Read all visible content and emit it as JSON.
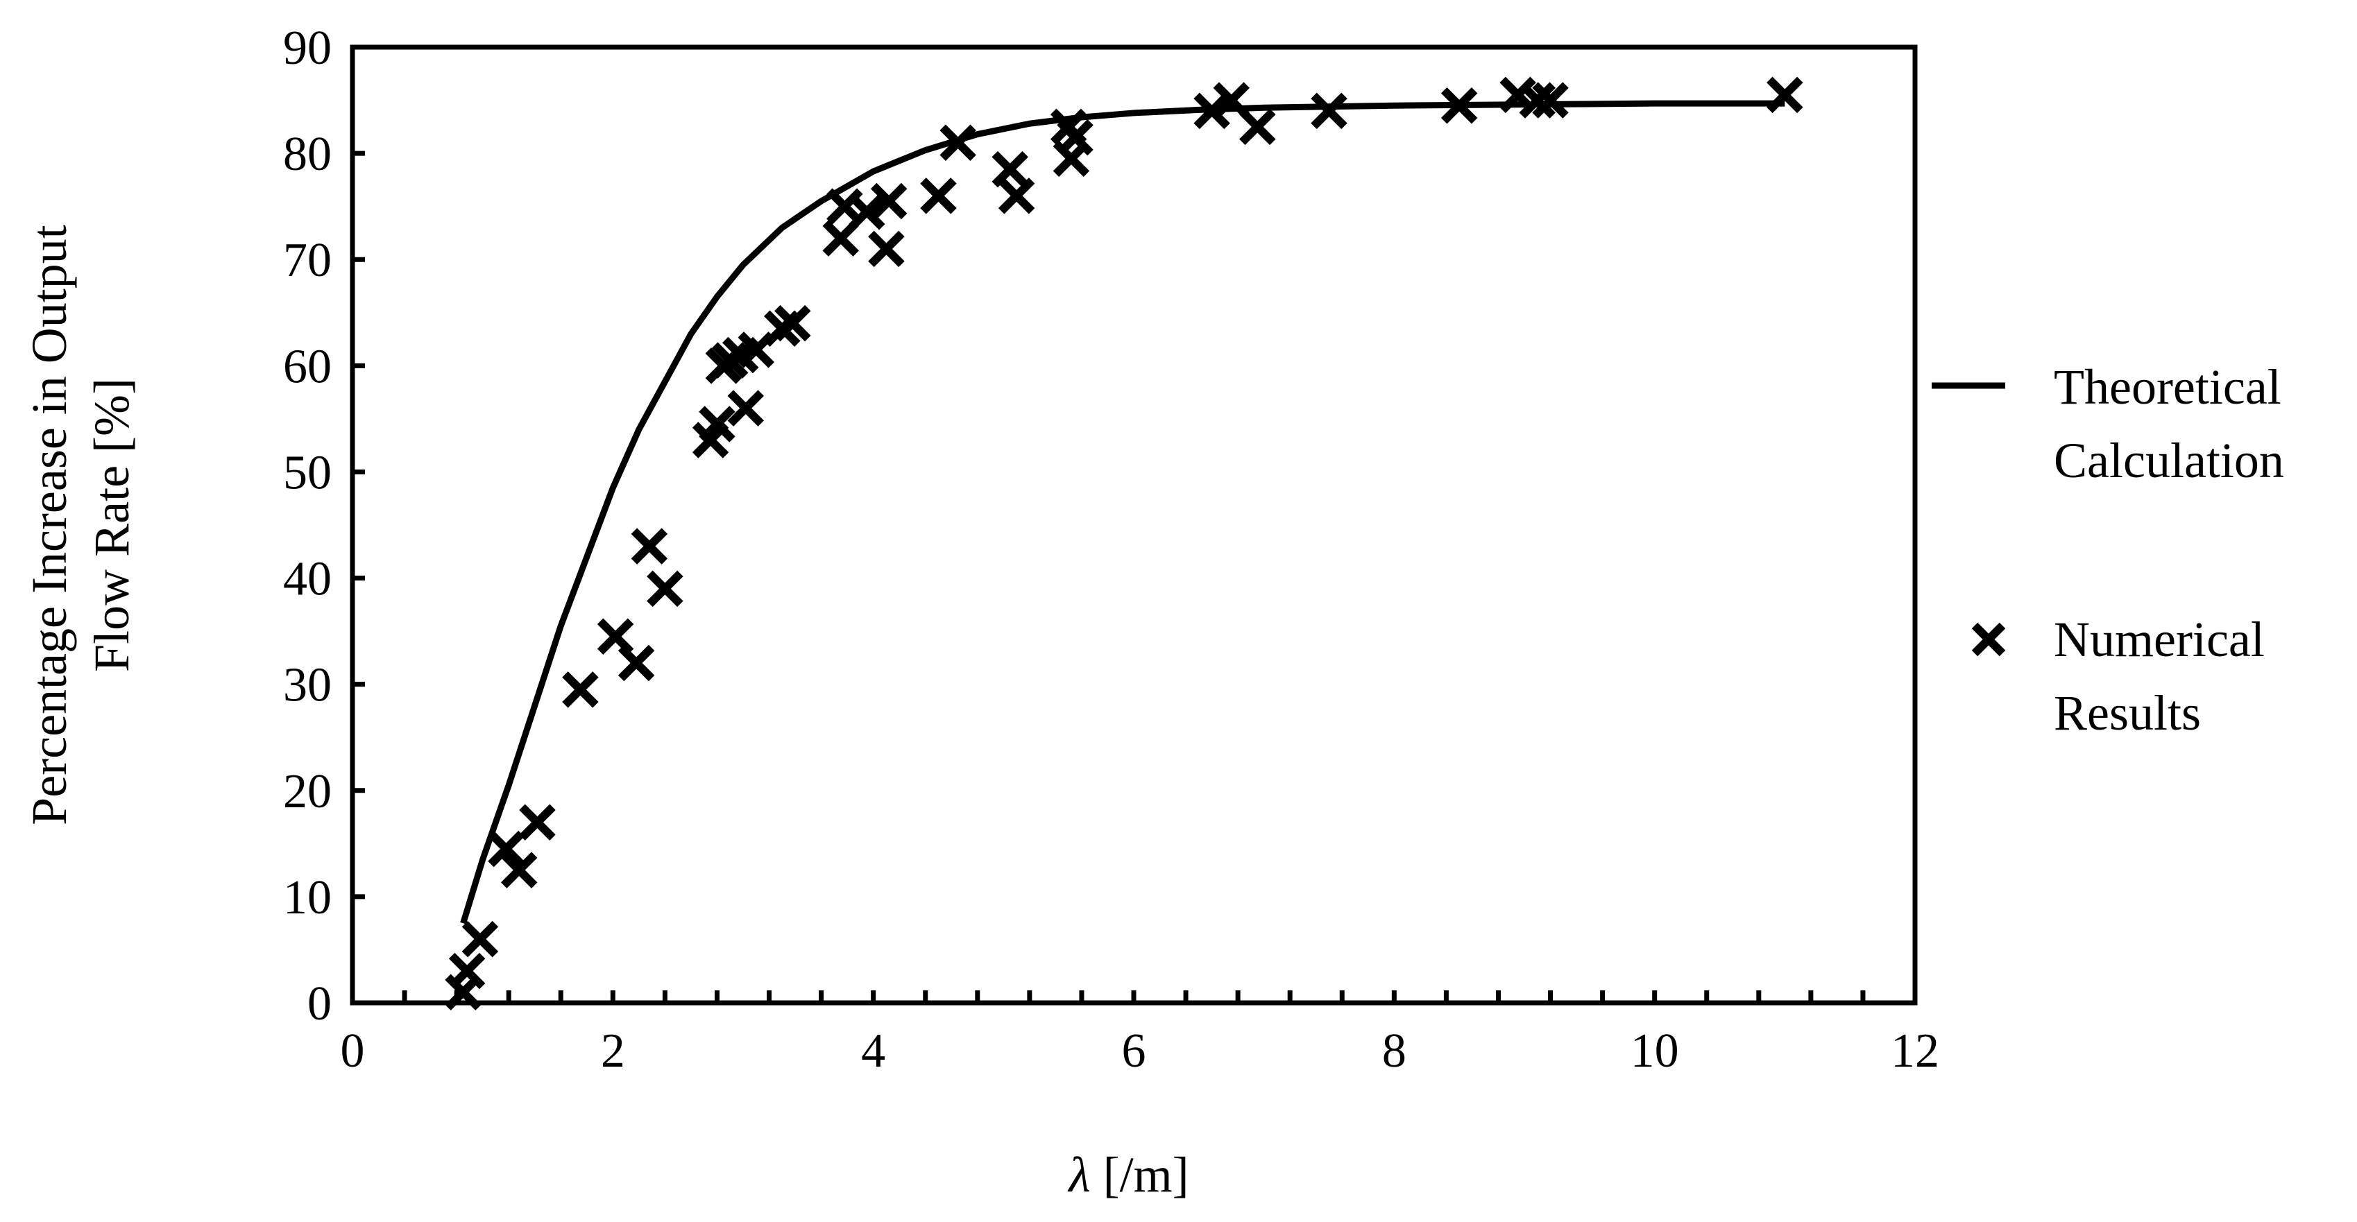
{
  "chart_data": {
    "type": "scatter",
    "title": "",
    "xlabel": {
      "symbol": "λ",
      "unit": " [/m]"
    },
    "ylabel": {
      "line1": "Percentage Increase in Output",
      "line2": "Flow Rate [%]"
    },
    "xlim": [
      0,
      12
    ],
    "ylim": [
      0,
      90
    ],
    "xticks": [
      0,
      2,
      4,
      6,
      8,
      10,
      12
    ],
    "yticks": [
      0,
      10,
      20,
      30,
      40,
      50,
      60,
      70,
      80,
      90
    ],
    "x_minor_step": 0.4,
    "grid": false,
    "legend_position": "right",
    "series": [
      {
        "name": "Theoretical Calculation",
        "legend_lines": [
          "Theoretical",
          "Calculation"
        ],
        "kind": "line",
        "color": "#000000",
        "x": [
          0.85,
          1.0,
          1.2,
          1.4,
          1.6,
          1.8,
          2.0,
          2.2,
          2.4,
          2.6,
          2.8,
          3.0,
          3.3,
          3.6,
          4.0,
          4.4,
          4.8,
          5.2,
          5.6,
          6.0,
          6.5,
          7.0,
          8.0,
          9.0,
          10.0,
          11.0
        ],
        "y": [
          7.5,
          13.5,
          20.5,
          28.0,
          35.5,
          42.0,
          48.5,
          54.0,
          58.5,
          63.0,
          66.5,
          69.5,
          73.0,
          75.5,
          78.3,
          80.3,
          81.8,
          82.8,
          83.4,
          83.8,
          84.1,
          84.3,
          84.5,
          84.6,
          84.7,
          84.7
        ]
      },
      {
        "name": "Numerical Results",
        "legend_lines": [
          "Numerical",
          "Results"
        ],
        "kind": "scatter",
        "marker": "x",
        "color": "#000000",
        "x": [
          0.85,
          0.88,
          0.98,
          1.18,
          1.28,
          1.42,
          1.75,
          2.02,
          2.18,
          2.28,
          2.4,
          2.75,
          2.8,
          2.85,
          2.9,
          2.98,
          3.02,
          3.1,
          3.3,
          3.38,
          3.75,
          3.78,
          3.95,
          4.1,
          4.12,
          4.5,
          4.65,
          5.05,
          5.1,
          5.5,
          5.52,
          5.55,
          6.6,
          6.75,
          6.95,
          7.5,
          8.5,
          8.95,
          9.1,
          9.2,
          11.0
        ],
        "y": [
          1.0,
          3.0,
          6.0,
          14.5,
          12.5,
          17.0,
          29.5,
          34.5,
          32.0,
          43.0,
          39.0,
          53.0,
          54.5,
          60.0,
          60.5,
          61.0,
          56.0,
          61.5,
          63.5,
          64.0,
          72.0,
          75.0,
          74.5,
          71.0,
          75.5,
          76.0,
          81.0,
          78.5,
          76.0,
          82.5,
          79.5,
          81.5,
          84.0,
          85.0,
          82.5,
          84.0,
          84.5,
          85.5,
          85.0,
          85.0,
          85.5
        ]
      }
    ]
  }
}
